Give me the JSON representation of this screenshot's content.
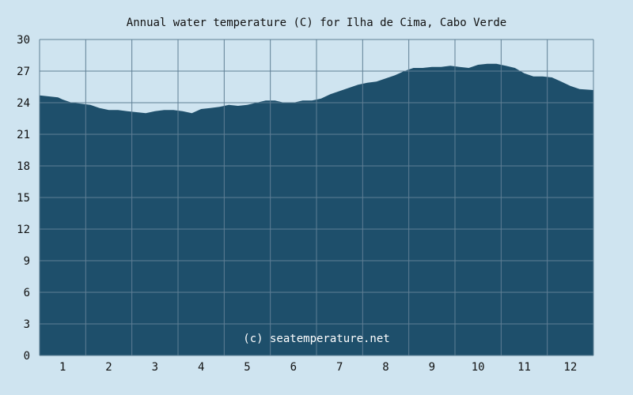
{
  "chart_data": {
    "type": "area",
    "title": "Annual water temperature (C) for Ilha de Cima, Cabo Verde",
    "xlabel": "",
    "ylabel": "",
    "ylim": [
      0,
      30
    ],
    "y_ticks": [
      "0",
      "3",
      "6",
      "9",
      "12",
      "15",
      "18",
      "21",
      "24",
      "27",
      "30"
    ],
    "x_ticks": [
      "1",
      "2",
      "3",
      "4",
      "5",
      "6",
      "7",
      "8",
      "9",
      "10",
      "11",
      "12"
    ],
    "xlim": [
      0.5,
      12.5
    ],
    "grid": true,
    "annotation": "(c) seatemperature.net",
    "colors": {
      "background": "#cfe4f0",
      "fill": "#1e4f6b",
      "grid": "#5f7f95"
    },
    "series": [
      {
        "x": [
          0.5,
          0.7,
          0.9,
          1.0,
          1.2,
          1.4,
          1.6,
          1.8,
          2.0,
          2.2,
          2.4,
          2.6,
          2.8,
          3.0,
          3.2,
          3.4,
          3.6,
          3.8,
          4.0,
          4.2,
          4.4,
          4.6,
          4.8,
          5.0,
          5.2,
          5.4,
          5.6,
          5.8,
          6.0,
          6.2,
          6.4,
          6.6,
          6.8,
          7.0,
          7.2,
          7.4,
          7.6,
          7.8,
          8.0,
          8.2,
          8.4,
          8.6,
          8.8,
          9.0,
          9.2,
          9.4,
          9.6,
          9.8,
          10.0,
          10.2,
          10.4,
          10.6,
          10.8,
          11.0,
          11.2,
          11.4,
          11.6,
          11.8,
          12.0,
          12.2,
          12.5
        ],
        "values": [
          24.7,
          24.6,
          24.5,
          24.3,
          24.0,
          23.9,
          23.8,
          23.5,
          23.3,
          23.3,
          23.2,
          23.1,
          23.0,
          23.2,
          23.3,
          23.3,
          23.2,
          23.0,
          23.4,
          23.5,
          23.6,
          23.8,
          23.7,
          23.8,
          24.0,
          24.2,
          24.2,
          24.0,
          24.0,
          24.2,
          24.2,
          24.4,
          24.8,
          25.1,
          25.4,
          25.7,
          25.9,
          26.0,
          26.3,
          26.6,
          27.0,
          27.3,
          27.3,
          27.4,
          27.4,
          27.5,
          27.4,
          27.3,
          27.6,
          27.7,
          27.7,
          27.5,
          27.3,
          26.8,
          26.5,
          26.5,
          26.4,
          26.0,
          25.6,
          25.3,
          25.2
        ]
      }
    ]
  }
}
